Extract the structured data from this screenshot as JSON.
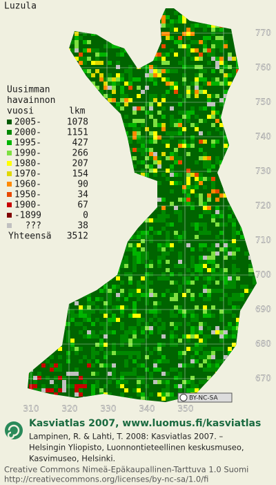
{
  "title": "Luzula",
  "legend": {
    "heading": [
      "Uusimman",
      "havainnon",
      "vuosi"
    ],
    "count_heading": "lkm",
    "rows": [
      {
        "label": "2005-",
        "count": 1078,
        "color": "#005a00"
      },
      {
        "label": "2000-",
        "count": 1151,
        "color": "#008800"
      },
      {
        "label": "1995-",
        "count": 427,
        "color": "#00b400"
      },
      {
        "label": "1990-",
        "count": 266,
        "color": "#7ee040"
      },
      {
        "label": "1980-",
        "count": 207,
        "color": "#ffff00"
      },
      {
        "label": "1970-",
        "count": 154,
        "color": "#e0d800"
      },
      {
        "label": "1960-",
        "count": 90,
        "color": "#ff8a00"
      },
      {
        "label": "1950-",
        "count": 34,
        "color": "#e84800"
      },
      {
        "label": "1900-",
        "count": 67,
        "color": "#c80000"
      },
      {
        "label": "-1899",
        "count": 0,
        "color": "#800000"
      },
      {
        "label": "???",
        "count": 38,
        "color": "#c0c0c0"
      }
    ],
    "total_label": "Yhteensä",
    "total": 3512
  },
  "grid_labels": {
    "north": [
      "770",
      "760",
      "750",
      "740",
      "730",
      "720",
      "710",
      "700",
      "690",
      "680",
      "670"
    ],
    "east": [
      "310",
      "320",
      "330",
      "340",
      "350"
    ]
  },
  "license_badge": "BY-NC-SA",
  "footer": {
    "site": "Kasviatlas 2007, www.luomus.fi/kasviatlas",
    "citation": [
      "Lampinen, R. & Lahti, T. 2008: Kasviatlas 2007. –",
      "Helsingin Yliopisto, Luonnontieteellinen keskusmuseo,",
      "Kasvimuseo, Helsinki."
    ],
    "license": [
      "Creative Commons Nimeä-Epäkaupallinen-Tarttuva 1.0 Suomi",
      "http://creativecommons.org/licenses/by-nc-sa/1.0/fi"
    ]
  }
}
